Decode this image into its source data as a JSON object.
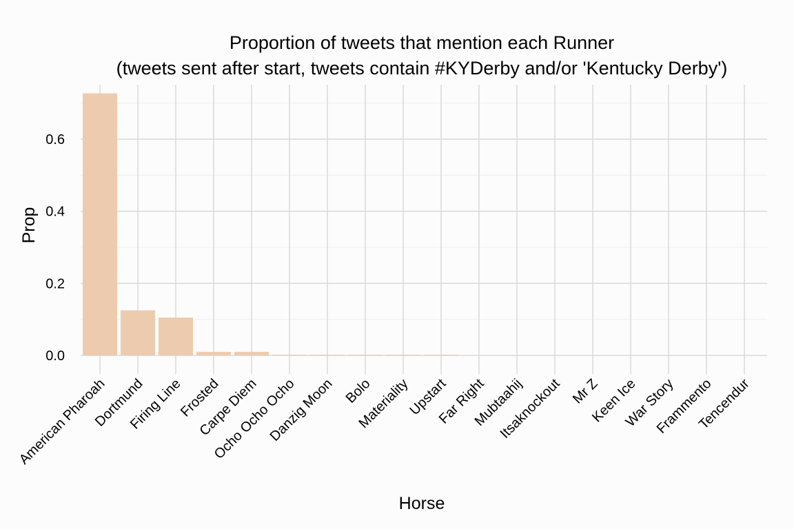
{
  "chart_data": {
    "type": "bar",
    "title": "Proportion of tweets that mention each Runner",
    "subtitle": "(tweets sent after start, tweets contain #KYDerby and/or 'Kentucky Derby')",
    "xlabel": "Horse",
    "ylabel": "Prop",
    "categories": [
      "American Pharoah",
      "Dortmund",
      "Firing Line",
      "Frosted",
      "Carpe Diem",
      "Ocho Ocho Ocho",
      "Danzig Moon",
      "Bolo",
      "Materiality",
      "Upstart",
      "Far Right",
      "Mubtaahij",
      "Itsaknockout",
      "Mr Z",
      "Keen Ice",
      "War Story",
      "Frammento",
      "Tencendur"
    ],
    "values": [
      0.727,
      0.125,
      0.105,
      0.01,
      0.01,
      0.002,
      0.002,
      0.002,
      0.002,
      0.002,
      0.0,
      0.0,
      0.0,
      0.0,
      0.0,
      0.0,
      0.0,
      0.0
    ],
    "yticks": [
      "0.0",
      "0.2",
      "0.4",
      "0.6"
    ],
    "ylim": [
      -0.05,
      0.75
    ],
    "bar_color": "#edcbae",
    "grid": true,
    "legend": "none"
  }
}
